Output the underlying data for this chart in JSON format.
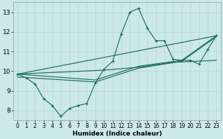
{
  "xlabel": "Humidex (Indice chaleur)",
  "bg_color": "#cce8e8",
  "grid_color": "#b8d8d8",
  "line_color": "#1a6b60",
  "xlim": [
    -0.5,
    23.5
  ],
  "ylim": [
    7.5,
    13.5
  ],
  "xticks": [
    0,
    1,
    2,
    3,
    4,
    5,
    6,
    7,
    8,
    9,
    10,
    11,
    12,
    13,
    14,
    15,
    16,
    17,
    18,
    19,
    20,
    21,
    22,
    23
  ],
  "yticks": [
    8,
    9,
    10,
    11,
    12,
    13
  ],
  "main_line": {
    "x": [
      0,
      1,
      2,
      3,
      4,
      5,
      6,
      7,
      8,
      9,
      10,
      11,
      12,
      13,
      14,
      15,
      16,
      17,
      18,
      19,
      20,
      21,
      22,
      23
    ],
    "y": [
      9.85,
      9.65,
      9.35,
      8.6,
      8.25,
      7.7,
      8.1,
      8.25,
      8.35,
      9.4,
      10.1,
      10.5,
      11.9,
      13.0,
      13.2,
      12.2,
      11.55,
      11.55,
      10.6,
      10.55,
      10.55,
      10.35,
      11.1,
      11.8
    ]
  },
  "trend1": {
    "x": [
      0,
      23
    ],
    "y": [
      9.85,
      11.8
    ]
  },
  "trend2": {
    "x": [
      0,
      10,
      14,
      18,
      23
    ],
    "y": [
      9.85,
      10.05,
      10.2,
      10.45,
      10.55
    ]
  },
  "trend3": {
    "x": [
      0,
      9,
      14,
      19,
      23
    ],
    "y": [
      9.7,
      9.45,
      10.15,
      10.5,
      11.75
    ]
  },
  "trend4": {
    "x": [
      0,
      9,
      14,
      19,
      23
    ],
    "y": [
      9.85,
      9.55,
      10.25,
      10.55,
      11.8
    ]
  }
}
